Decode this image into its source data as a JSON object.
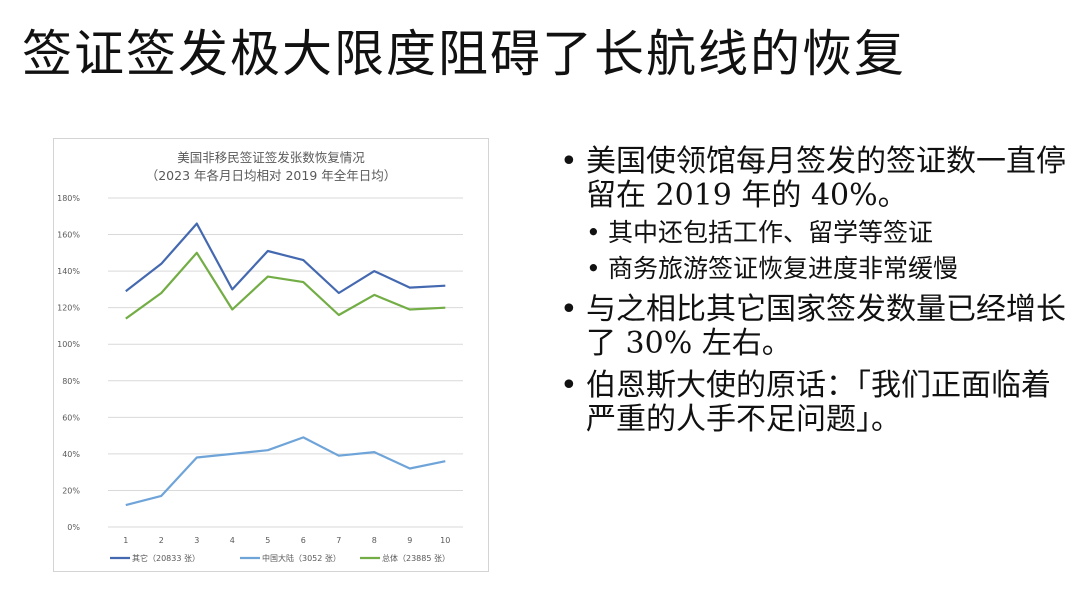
{
  "slide": {
    "title": "签证签发极大限度阻碍了长航线的恢复"
  },
  "bullets": [
    {
      "text": "美国使领馆每月签发的签证数一直停留在 2019 年的 40%。",
      "level": 1
    },
    {
      "text": "其中还包括工作、留学等签证",
      "level": 2
    },
    {
      "text": "商务旅游签证恢复进度非常缓慢",
      "level": 2
    },
    {
      "text": "与之相比其它国家签发数量已经增长了 30% 左右。",
      "level": 1
    },
    {
      "text": "伯恩斯大使的原话：「我们正面临着严重的人手不足问题」。",
      "level": 1
    }
  ],
  "chart_data": {
    "type": "line",
    "title": "美国非移民签证签发张数恢复情况",
    "subtitle": "（2023 年各月日均相对 2019 年全年日均）",
    "x": [
      1,
      2,
      3,
      4,
      5,
      6,
      7,
      8,
      9,
      10
    ],
    "ylim": [
      0,
      180
    ],
    "yticks": [
      "0%",
      "20%",
      "40%",
      "60%",
      "80%",
      "100%",
      "120%",
      "140%",
      "160%",
      "180%"
    ],
    "grid": true,
    "legend_position": "bottom",
    "series": [
      {
        "name": "其它（20833 张）",
        "color": "#4469b0",
        "values": [
          129,
          144,
          166,
          130,
          151,
          146,
          128,
          140,
          131,
          132
        ]
      },
      {
        "name": "中国大陆（3052 张）",
        "color": "#6fa4d9",
        "values": [
          12,
          17,
          38,
          40,
          42,
          49,
          39,
          41,
          32,
          36
        ]
      },
      {
        "name": "总体（23885 张）",
        "color": "#73ad45",
        "values": [
          114,
          128,
          150,
          119,
          137,
          134,
          116,
          127,
          119,
          120
        ]
      }
    ]
  }
}
